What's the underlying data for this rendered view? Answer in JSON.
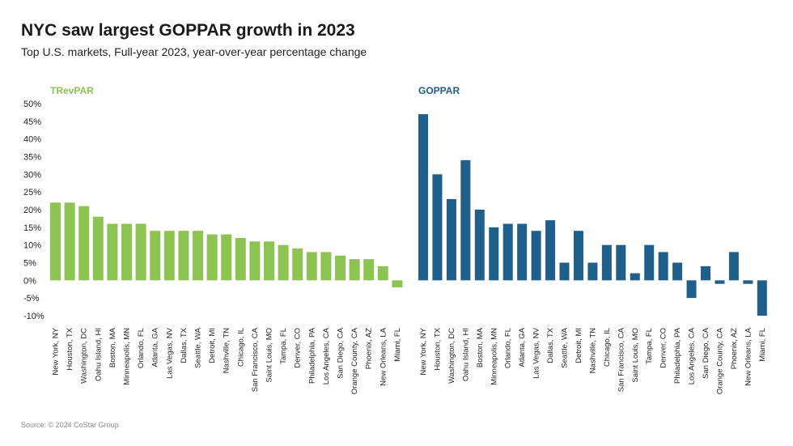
{
  "title": "NYC saw largest GOPPAR growth in 2023",
  "subtitle": "Top U.S. markets, Full-year 2023, year-over-year percentage change",
  "source": "Source: © 2024 CoStar Group",
  "colors": {
    "trevpar": "#8dc351",
    "goppar": "#1f5f8b"
  },
  "chart_data": [
    {
      "type": "bar",
      "title": "TRevPAR",
      "ylim": [
        -10,
        50
      ],
      "yticks": [
        "50%",
        "45%",
        "40%",
        "35%",
        "30%",
        "25%",
        "20%",
        "15%",
        "10%",
        "5%",
        "0%",
        "-5%",
        "-10%"
      ],
      "categories": [
        "New York, NY",
        "Houston, TX",
        "Washington, DC",
        "Oahu Island, HI",
        "Boston, MA",
        "Minneapolis, MN",
        "Orlando, FL",
        "Atlanta, GA",
        "Las Vegas, NV",
        "Dallas, TX",
        "Seattle, WA",
        "Detroit, MI",
        "Nashville, TN",
        "Chicago, IL",
        "San Francisco, CA",
        "Saint Louis, MO",
        "Tampa, FL",
        "Denver, CO",
        "Philadelphia, PA",
        "Los Angeles, CA",
        "San Diego, CA",
        "Orange County, CA",
        "Phoenix, AZ",
        "New Orleans, LA",
        "Miami, FL"
      ],
      "values": [
        22,
        22,
        21,
        18,
        16,
        16,
        16,
        14,
        14,
        14,
        14,
        13,
        13,
        12,
        11,
        11,
        10,
        9,
        8,
        8,
        7,
        6,
        6,
        4,
        -2
      ]
    },
    {
      "type": "bar",
      "title": "GOPPAR",
      "ylim": [
        -10,
        50
      ],
      "categories": [
        "New York, NY",
        "Houston, TX",
        "Washington, DC",
        "Oahu Island, HI",
        "Boston, MA",
        "Minneapolis, MN",
        "Orlando, FL",
        "Atlanta, GA",
        "Las Vegas, NV",
        "Dallas, TX",
        "Seattle, WA",
        "Detroit, MI",
        "Nashville, TN",
        "Chicago, IL",
        "San Francisco, CA",
        "Saint Louis, MO",
        "Tampa, FL",
        "Denver, CO",
        "Philadelphia, PA",
        "Los Angeles, CA",
        "San Diego, CA",
        "Orange County, CA",
        "Phoenix, AZ",
        "New Orleans, LA",
        "Miami, FL"
      ],
      "values": [
        47,
        30,
        23,
        34,
        20,
        15,
        16,
        16,
        14,
        17,
        5,
        14,
        5,
        10,
        10,
        2,
        10,
        8,
        5,
        -5,
        4,
        -1,
        8,
        -1,
        -10
      ]
    }
  ]
}
